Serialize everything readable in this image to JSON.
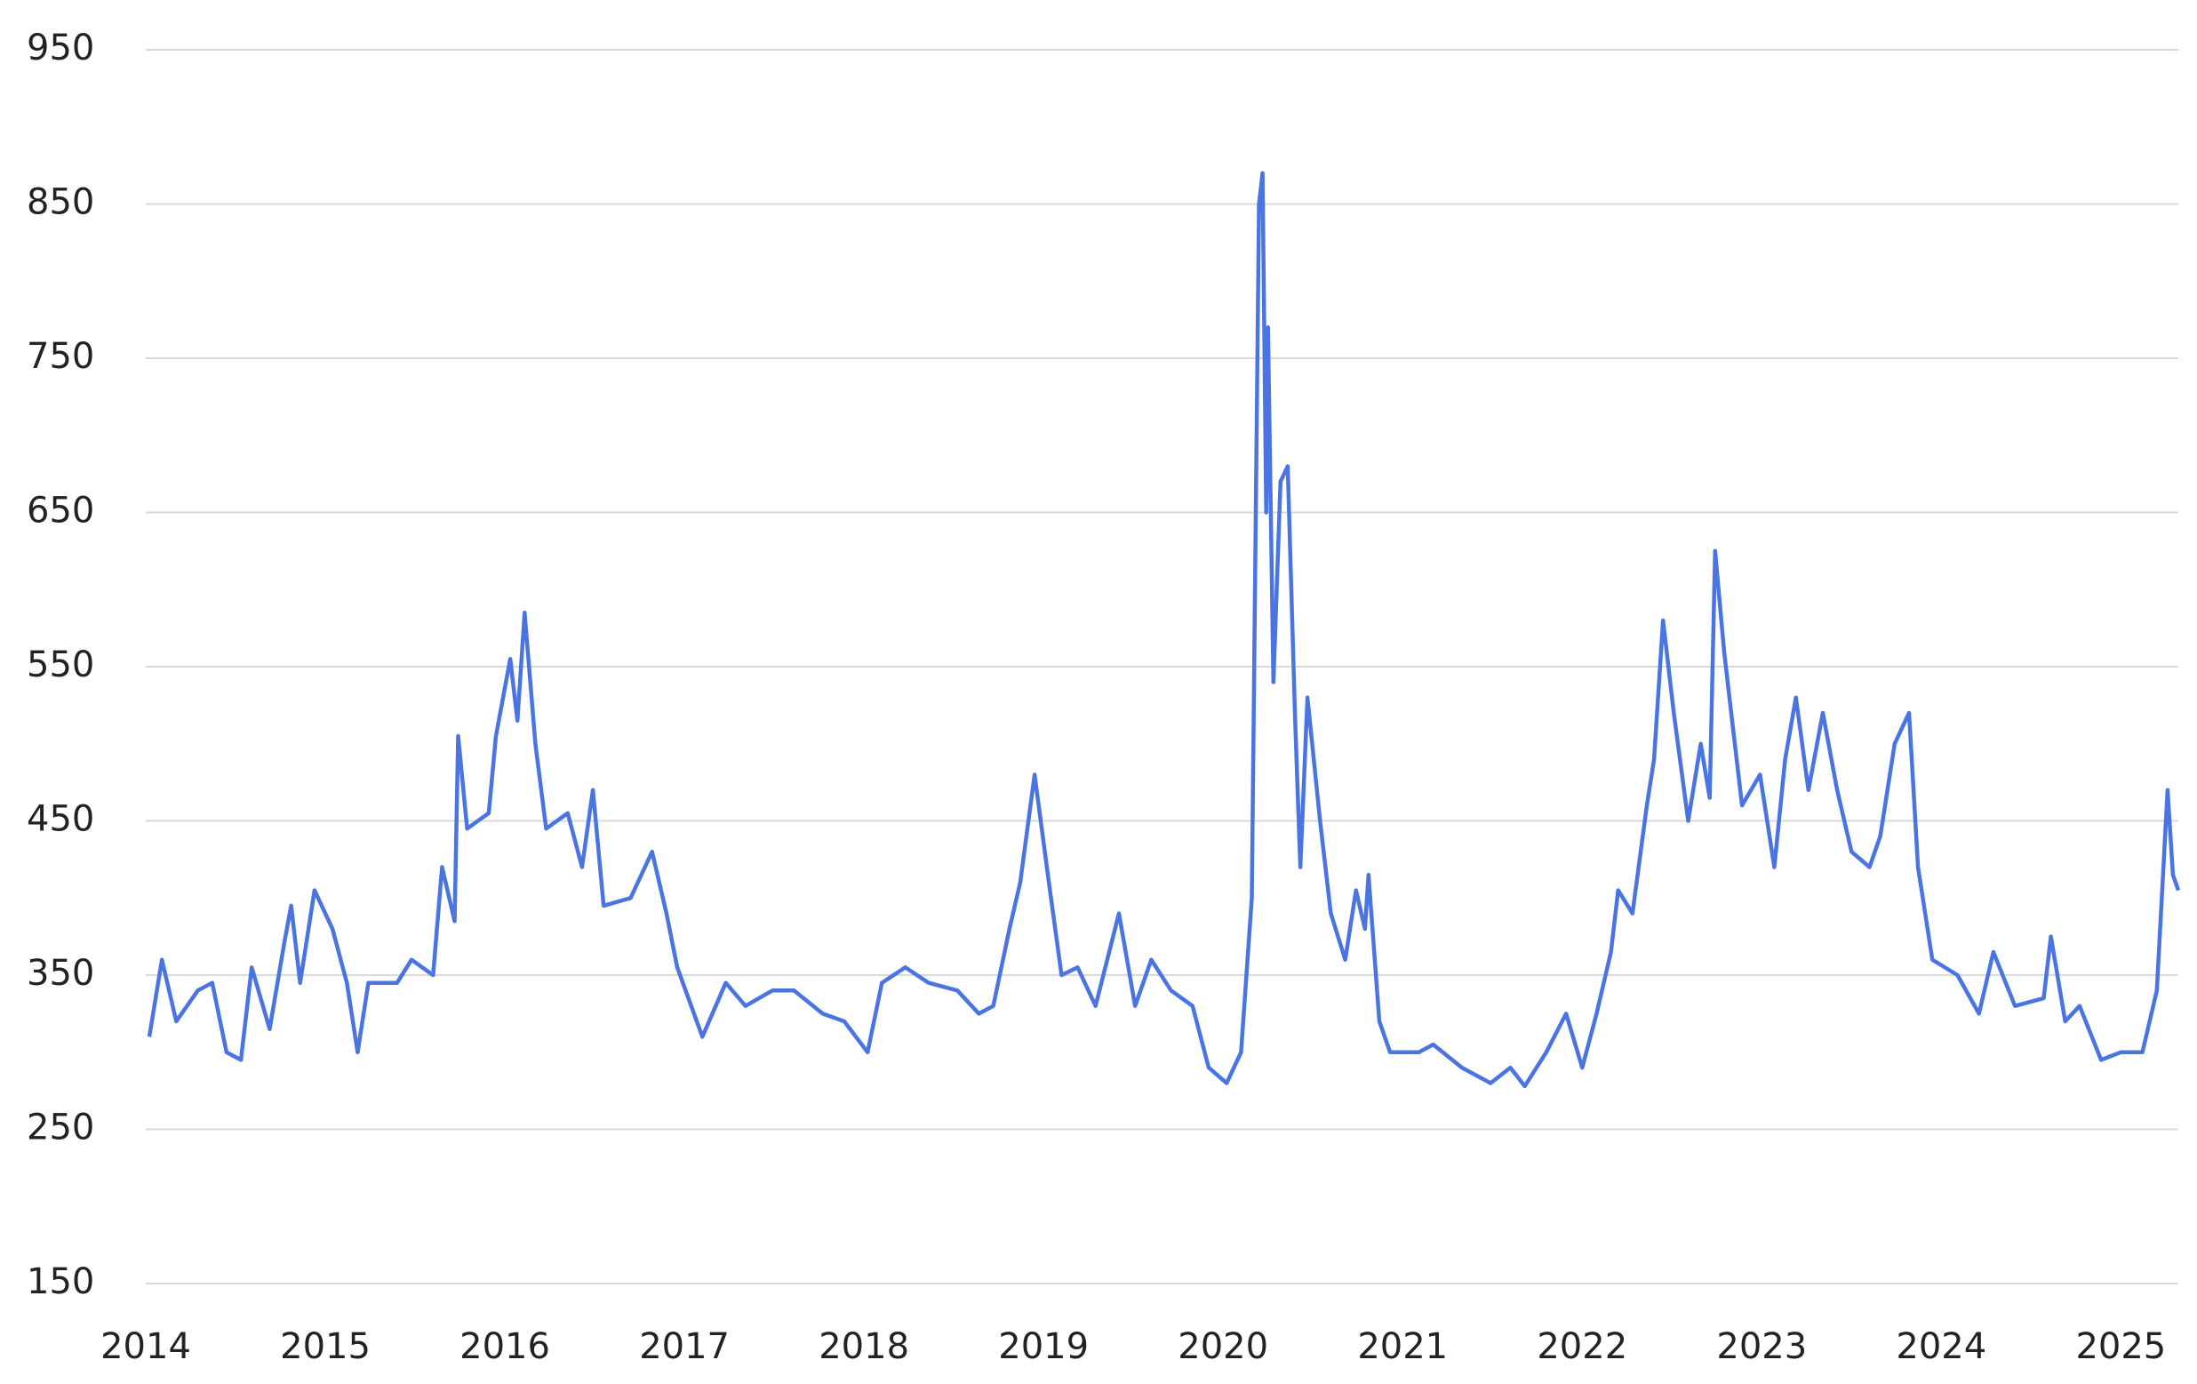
{
  "chart_data": {
    "type": "line",
    "x": [
      2014.02,
      2014.09,
      2014.17,
      2014.29,
      2014.37,
      2014.45,
      2014.53,
      2014.59,
      2014.69,
      2014.77,
      2014.81,
      2014.86,
      2014.94,
      2015.04,
      2015.12,
      2015.18,
      2015.24,
      2015.4,
      2015.48,
      2015.6,
      2015.65,
      2015.72,
      2015.74,
      2015.79,
      2015.91,
      2015.95,
      2016.03,
      2016.07,
      2016.11,
      2016.17,
      2016.23,
      2016.35,
      2016.43,
      2016.49,
      2016.55,
      2016.7,
      2016.82,
      2016.9,
      2016.96,
      2017.1,
      2017.23,
      2017.34,
      2017.49,
      2017.61,
      2017.77,
      2017.89,
      2018.02,
      2018.1,
      2018.23,
      2018.36,
      2018.52,
      2018.64,
      2018.72,
      2018.81,
      2018.87,
      2018.95,
      2019.03,
      2019.1,
      2019.19,
      2019.29,
      2019.42,
      2019.51,
      2019.6,
      2019.71,
      2019.83,
      2019.92,
      2020.02,
      2020.1,
      2020.16,
      2020.2,
      2020.22,
      2020.24,
      2020.25,
      2020.28,
      2020.32,
      2020.36,
      2020.4,
      2020.43,
      2020.47,
      2020.54,
      2020.6,
      2020.68,
      2020.74,
      2020.79,
      2020.81,
      2020.87,
      2020.93,
      2021.09,
      2021.17,
      2021.33,
      2021.49,
      2021.6,
      2021.68,
      2021.8,
      2021.91,
      2022.0,
      2022.08,
      2022.16,
      2022.2,
      2022.28,
      2022.36,
      2022.4,
      2022.45,
      2022.51,
      2022.59,
      2022.66,
      2022.71,
      2022.74,
      2022.79,
      2022.83,
      2022.89,
      2022.99,
      2023.07,
      2023.13,
      2023.19,
      2023.26,
      2023.34,
      2023.42,
      2023.5,
      2023.6,
      2023.66,
      2023.74,
      2023.82,
      2023.87,
      2023.95,
      2024.09,
      2024.21,
      2024.29,
      2024.41,
      2024.57,
      2024.61,
      2024.69,
      2024.77,
      2024.89,
      2025.0,
      2025.12,
      2025.2,
      2025.26,
      2025.29,
      2025.32
    ],
    "series": [
      {
        "color": "#4a74e2",
        "values": [
          310,
          360,
          320,
          340,
          345,
          300,
          295,
          355,
          315,
          370,
          395,
          345,
          405,
          380,
          345,
          300,
          345,
          345,
          360,
          350,
          420,
          385,
          505,
          445,
          455,
          505,
          555,
          515,
          585,
          500,
          445,
          455,
          420,
          470,
          395,
          400,
          430,
          390,
          355,
          310,
          345,
          330,
          340,
          340,
          325,
          320,
          300,
          345,
          355,
          345,
          340,
          325,
          330,
          380,
          410,
          480,
          410,
          350,
          355,
          330,
          390,
          330,
          360,
          340,
          330,
          290,
          280,
          300,
          400,
          850,
          870,
          650,
          770,
          540,
          670,
          680,
          520,
          420,
          530,
          450,
          390,
          360,
          405,
          380,
          415,
          320,
          300,
          300,
          305,
          290,
          280,
          290,
          278,
          300,
          325,
          290,
          325,
          365,
          405,
          390,
          460,
          490,
          580,
          520,
          450,
          500,
          465,
          625,
          560,
          520,
          460,
          480,
          420,
          490,
          530,
          470,
          520,
          470,
          430,
          420,
          440,
          500,
          520,
          420,
          360,
          350,
          325,
          365,
          330,
          335,
          375,
          320,
          330,
          295,
          300,
          300,
          340,
          470,
          415,
          405
        ]
      }
    ],
    "xlim": [
      2014,
      2025.32
    ],
    "ylim": [
      150,
      950
    ],
    "xticks": [
      2014,
      2015,
      2016,
      2017,
      2018,
      2019,
      2020,
      2021,
      2022,
      2023,
      2024,
      2025
    ],
    "yticks": [
      150,
      250,
      350,
      450,
      550,
      650,
      750,
      850,
      950
    ],
    "grid": true
  }
}
